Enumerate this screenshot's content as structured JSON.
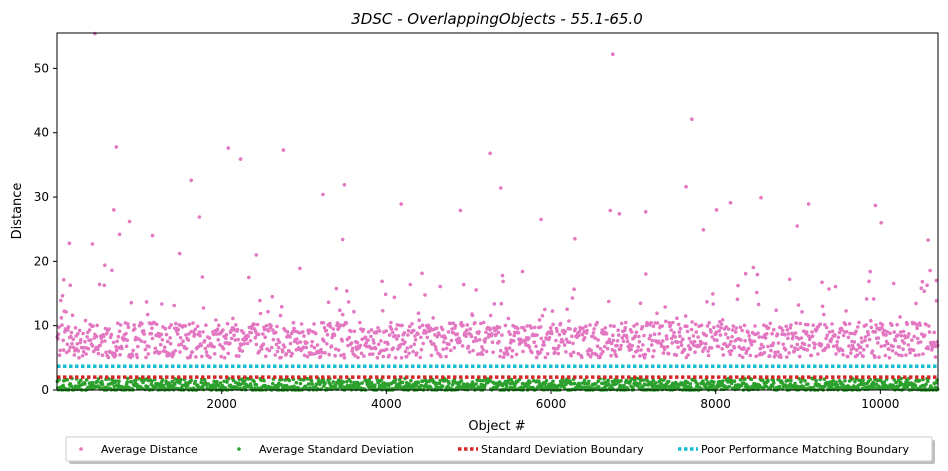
{
  "chart_data": {
    "type": "scatter",
    "title": "3DSC - OverlappingObjects - 55.1-65.0",
    "xlabel": "Object #",
    "ylabel": "Distance",
    "xlim": [
      0,
      10700
    ],
    "ylim": [
      0,
      55.5
    ],
    "x_ticks": [
      2000,
      4000,
      6000,
      8000,
      10000
    ],
    "y_ticks": [
      0,
      10,
      20,
      30,
      40,
      50
    ],
    "grid": false,
    "legend_position": "bottom-center",
    "series": [
      {
        "name": "Average Distance",
        "kind": "scatter",
        "color": "#e377c2",
        "typical_range": [
          4,
          12
        ],
        "point_count": 1500,
        "notable_points": [
          {
            "x": 80,
            "y": 6.2
          },
          {
            "x": 150,
            "y": 22.8
          },
          {
            "x": 160,
            "y": 16.3
          },
          {
            "x": 430,
            "y": 22.7
          },
          {
            "x": 460,
            "y": 55.4
          },
          {
            "x": 580,
            "y": 19.4
          },
          {
            "x": 690,
            "y": 28.0
          },
          {
            "x": 720,
            "y": 37.8
          },
          {
            "x": 760,
            "y": 24.2
          },
          {
            "x": 880,
            "y": 26.2
          },
          {
            "x": 1160,
            "y": 24.0
          },
          {
            "x": 1490,
            "y": 21.2
          },
          {
            "x": 1630,
            "y": 32.6
          },
          {
            "x": 1730,
            "y": 26.9
          },
          {
            "x": 2080,
            "y": 37.6
          },
          {
            "x": 2230,
            "y": 35.9
          },
          {
            "x": 2420,
            "y": 21.0
          },
          {
            "x": 2750,
            "y": 37.3
          },
          {
            "x": 2950,
            "y": 18.9
          },
          {
            "x": 3230,
            "y": 30.4
          },
          {
            "x": 3490,
            "y": 31.9
          },
          {
            "x": 3470,
            "y": 23.4
          },
          {
            "x": 4180,
            "y": 28.9
          },
          {
            "x": 4900,
            "y": 27.9
          },
          {
            "x": 5260,
            "y": 36.8
          },
          {
            "x": 5390,
            "y": 31.4
          },
          {
            "x": 5880,
            "y": 26.5
          },
          {
            "x": 6290,
            "y": 23.5
          },
          {
            "x": 6750,
            "y": 52.2
          },
          {
            "x": 6830,
            "y": 27.4
          },
          {
            "x": 6720,
            "y": 27.9
          },
          {
            "x": 7150,
            "y": 27.7
          },
          {
            "x": 7640,
            "y": 31.6
          },
          {
            "x": 7710,
            "y": 42.1
          },
          {
            "x": 7850,
            "y": 24.9
          },
          {
            "x": 8010,
            "y": 28.0
          },
          {
            "x": 8180,
            "y": 29.1
          },
          {
            "x": 8550,
            "y": 29.9
          },
          {
            "x": 8990,
            "y": 25.5
          },
          {
            "x": 9130,
            "y": 28.9
          },
          {
            "x": 9940,
            "y": 28.7
          },
          {
            "x": 10010,
            "y": 26.0
          },
          {
            "x": 10580,
            "y": 23.3
          },
          {
            "x": 10680,
            "y": 17.0
          }
        ]
      },
      {
        "name": "Average Standard Deviation",
        "kind": "scatter",
        "color": "#2ca02c",
        "typical_range": [
          0,
          1.8
        ],
        "point_count": 1500
      },
      {
        "name": "Standard Deviation Boundary",
        "kind": "hline",
        "color": "#d62728",
        "y": 2.0,
        "style": "dotted"
      },
      {
        "name": "Poor Performance Matching Boundary",
        "kind": "hline",
        "color": "#17becf",
        "y": 3.7,
        "style": "dotted"
      }
    ]
  }
}
